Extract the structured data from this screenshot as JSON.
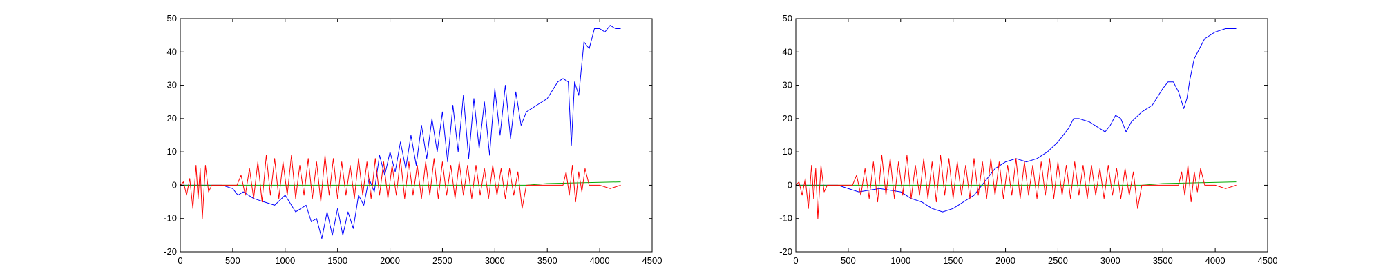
{
  "chart_data": [
    {
      "type": "line",
      "title": "",
      "xlabel": "",
      "ylabel": "",
      "xlim": [
        0,
        4500
      ],
      "ylim": [
        -20,
        50
      ],
      "xticks": [
        0,
        500,
        1000,
        1500,
        2000,
        2500,
        3000,
        3500,
        4000,
        4500
      ],
      "yticks": [
        -20,
        -10,
        0,
        10,
        20,
        30,
        40,
        50
      ],
      "xtick_labels": [
        "0",
        "500",
        "1000",
        "1500",
        "2000",
        "2500",
        "3000",
        "3500",
        "4000",
        "4500"
      ],
      "ytick_labels": [
        "-20",
        "-10",
        "0",
        "10",
        "20",
        "30",
        "40",
        "50"
      ],
      "grid": false,
      "legend": "none",
      "series": [
        {
          "color": "#0000ff",
          "x": [
            0,
            400,
            500,
            550,
            600,
            700,
            800,
            900,
            1000,
            1100,
            1200,
            1250,
            1300,
            1350,
            1400,
            1450,
            1500,
            1550,
            1600,
            1650,
            1700,
            1750,
            1800,
            1850,
            1900,
            1950,
            2000,
            2050,
            2100,
            2150,
            2200,
            2250,
            2300,
            2350,
            2400,
            2450,
            2500,
            2550,
            2600,
            2650,
            2700,
            2750,
            2800,
            2850,
            2900,
            2950,
            3000,
            3050,
            3100,
            3150,
            3200,
            3250,
            3300,
            3400,
            3500,
            3600,
            3650,
            3700,
            3730,
            3760,
            3800,
            3850,
            3900,
            3950,
            4000,
            4050,
            4100,
            4150,
            4200
          ],
          "y": [
            0,
            0,
            -1,
            -3,
            -2,
            -4,
            -5,
            -6,
            -3,
            -8,
            -6,
            -11,
            -10,
            -16,
            -8,
            -15,
            -7,
            -15,
            -8,
            -13,
            -3,
            -6,
            2,
            -2,
            9,
            3,
            10,
            4,
            13,
            5,
            15,
            6,
            18,
            8,
            20,
            10,
            22,
            7,
            24,
            10,
            27,
            8,
            26,
            11,
            25,
            9,
            29,
            15,
            30,
            14,
            28,
            18,
            22,
            24,
            26,
            31,
            32,
            31,
            12,
            31,
            27,
            43,
            41,
            47,
            47,
            46,
            48,
            47,
            47
          ]
        },
        {
          "color": "#00aa00",
          "x": [
            0,
            3300,
            3500,
            4200
          ],
          "y": [
            0,
            0,
            0.5,
            1
          ]
        },
        {
          "color": "#ff0000",
          "x": [
            0,
            30,
            60,
            90,
            120,
            150,
            170,
            190,
            210,
            240,
            270,
            300,
            540,
            580,
            620,
            660,
            700,
            740,
            780,
            820,
            860,
            900,
            940,
            980,
            1020,
            1060,
            1100,
            1140,
            1180,
            1220,
            1260,
            1300,
            1340,
            1380,
            1420,
            1460,
            1500,
            1540,
            1580,
            1620,
            1660,
            1700,
            1740,
            1780,
            1820,
            1860,
            1900,
            1940,
            1980,
            2020,
            2060,
            2100,
            2140,
            2180,
            2220,
            2260,
            2300,
            2340,
            2380,
            2420,
            2460,
            2500,
            2540,
            2580,
            2620,
            2660,
            2700,
            2740,
            2780,
            2820,
            2860,
            2900,
            2940,
            2980,
            3020,
            3060,
            3100,
            3140,
            3180,
            3220,
            3260,
            3300,
            3650,
            3680,
            3710,
            3740,
            3770,
            3800,
            3830,
            3860,
            3900,
            4000,
            4100,
            4200
          ],
          "y": [
            0,
            1,
            -3,
            2,
            -7,
            6,
            -4,
            5,
            -10,
            6,
            -2,
            0,
            0,
            3,
            -3,
            5,
            -4,
            7,
            -5,
            9,
            -3,
            8,
            -4,
            7,
            -3,
            9,
            -4,
            6,
            -3,
            8,
            -4,
            7,
            -5,
            9,
            -3,
            8,
            -4,
            7,
            -3,
            6,
            -4,
            8,
            -3,
            7,
            -4,
            8,
            -3,
            7,
            -4,
            6,
            -3,
            8,
            -4,
            7,
            -3,
            6,
            -4,
            7,
            -3,
            8,
            -4,
            7,
            -3,
            6,
            -4,
            7,
            -3,
            6,
            -4,
            6,
            -3,
            5,
            -4,
            6,
            -3,
            5,
            -4,
            5,
            -3,
            4,
            -7,
            0,
            0,
            4,
            -3,
            6,
            -5,
            4,
            -2,
            5,
            0,
            0,
            -1,
            0
          ]
        }
      ]
    },
    {
      "type": "line",
      "title": "",
      "xlabel": "",
      "ylabel": "",
      "xlim": [
        0,
        4500
      ],
      "ylim": [
        -20,
        50
      ],
      "xticks": [
        0,
        500,
        1000,
        1500,
        2000,
        2500,
        3000,
        3500,
        4000,
        4500
      ],
      "yticks": [
        -20,
        -10,
        0,
        10,
        20,
        30,
        40,
        50
      ],
      "xtick_labels": [
        "0",
        "500",
        "1000",
        "1500",
        "2000",
        "2500",
        "3000",
        "3500",
        "4000",
        "4500"
      ],
      "ytick_labels": [
        "-20",
        "-10",
        "0",
        "10",
        "20",
        "30",
        "40",
        "50"
      ],
      "grid": false,
      "legend": "none",
      "series": [
        {
          "color": "#0000ff",
          "x": [
            0,
            400,
            600,
            800,
            1000,
            1100,
            1200,
            1300,
            1400,
            1500,
            1600,
            1700,
            1750,
            1800,
            1900,
            2000,
            2100,
            2200,
            2300,
            2400,
            2500,
            2600,
            2650,
            2700,
            2800,
            2900,
            2950,
            3000,
            3050,
            3100,
            3150,
            3200,
            3300,
            3400,
            3500,
            3550,
            3600,
            3650,
            3700,
            3730,
            3760,
            3800,
            3850,
            3900,
            4000,
            4100,
            4150,
            4200
          ],
          "y": [
            0,
            0,
            -2,
            -1,
            -2,
            -4,
            -5,
            -7,
            -8,
            -7,
            -5,
            -3,
            -1,
            1,
            5,
            7,
            8,
            7,
            8,
            10,
            13,
            17,
            20,
            20,
            19,
            17,
            16,
            18,
            21,
            20,
            16,
            19,
            22,
            24,
            29,
            31,
            31,
            28,
            23,
            26,
            32,
            38,
            41,
            44,
            46,
            47,
            47,
            47
          ]
        },
        {
          "color": "#00aa00",
          "x": [
            0,
            3300,
            3500,
            4200
          ],
          "y": [
            0,
            0,
            0.5,
            1
          ]
        },
        {
          "color": "#ff0000",
          "x": [
            0,
            30,
            60,
            90,
            120,
            150,
            170,
            190,
            210,
            240,
            270,
            300,
            540,
            580,
            620,
            660,
            700,
            740,
            780,
            820,
            860,
            900,
            940,
            980,
            1020,
            1060,
            1100,
            1140,
            1180,
            1220,
            1260,
            1300,
            1340,
            1380,
            1420,
            1460,
            1500,
            1540,
            1580,
            1620,
            1660,
            1700,
            1740,
            1780,
            1820,
            1860,
            1900,
            1940,
            1980,
            2020,
            2060,
            2100,
            2140,
            2180,
            2220,
            2260,
            2300,
            2340,
            2380,
            2420,
            2460,
            2500,
            2540,
            2580,
            2620,
            2660,
            2700,
            2740,
            2780,
            2820,
            2860,
            2900,
            2940,
            2980,
            3020,
            3060,
            3100,
            3140,
            3180,
            3220,
            3260,
            3300,
            3650,
            3680,
            3710,
            3740,
            3770,
            3800,
            3830,
            3860,
            3900,
            4000,
            4100,
            4200
          ],
          "y": [
            0,
            1,
            -3,
            2,
            -7,
            6,
            -4,
            5,
            -10,
            6,
            -2,
            0,
            0,
            3,
            -3,
            5,
            -4,
            7,
            -5,
            9,
            -3,
            8,
            -4,
            7,
            -3,
            9,
            -4,
            6,
            -3,
            8,
            -4,
            7,
            -5,
            9,
            -3,
            8,
            -4,
            7,
            -3,
            6,
            -4,
            8,
            -3,
            7,
            -4,
            8,
            -3,
            7,
            -4,
            6,
            -3,
            8,
            -4,
            7,
            -3,
            6,
            -4,
            7,
            -3,
            8,
            -4,
            7,
            -3,
            6,
            -4,
            7,
            -3,
            6,
            -4,
            6,
            -3,
            5,
            -4,
            6,
            -3,
            5,
            -4,
            5,
            -3,
            4,
            -7,
            0,
            0,
            4,
            -3,
            6,
            -5,
            4,
            -2,
            5,
            0,
            0,
            -1,
            0
          ]
        }
      ]
    }
  ]
}
